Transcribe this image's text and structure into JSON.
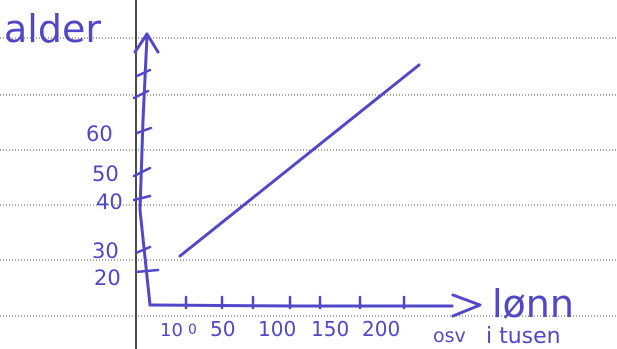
{
  "ink_color": "#5148c9",
  "rule_color": "#555555",
  "margin_color": "#111111",
  "chart_data": {
    "type": "line",
    "title": "",
    "xlabel": "lønn",
    "xlabel_sub": "i tusen",
    "ylabel": "alder",
    "x_ticks": [
      "10",
      "0",
      "50",
      "100",
      "150",
      "200",
      "osv"
    ],
    "y_ticks": [
      "20",
      "30",
      "40",
      "50",
      "60"
    ],
    "series": [
      {
        "values": [
          {
            "x": 10,
            "y": 30
          },
          {
            "x": 250,
            "y": 85
          }
        ]
      }
    ],
    "grid": false
  }
}
